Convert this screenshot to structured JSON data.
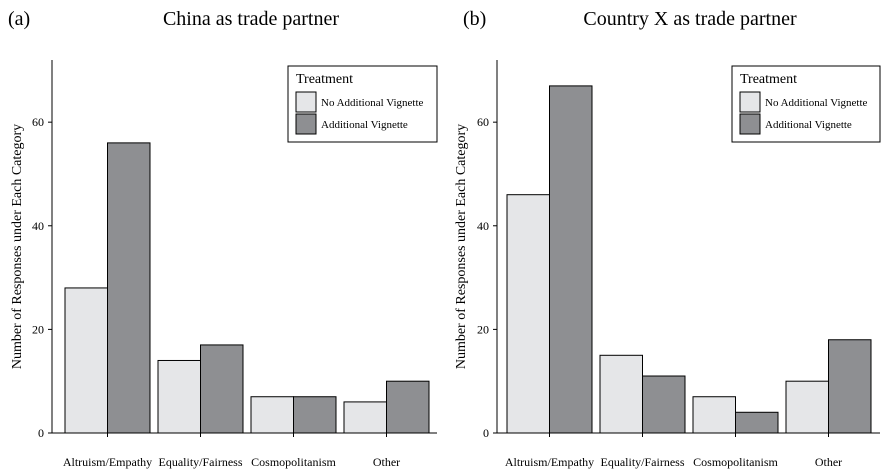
{
  "figure": {
    "colors": {
      "no_vignette": "#e5e6e8",
      "vignette": "#8e8f92",
      "stroke": "#000000"
    }
  },
  "chart_data": [
    {
      "type": "bar",
      "panel_label": "(a)",
      "title": "China as trade partner",
      "xlabel": "",
      "ylabel": "Number of Responses under Each Category",
      "categories": [
        "Altruism/Empathy",
        "Equality/Fairness",
        "Cosmopolitanism",
        "Other"
      ],
      "series": [
        {
          "name": "No Additional Vignette",
          "values": [
            28,
            14,
            7,
            6
          ]
        },
        {
          "name": "Additional Vignette",
          "values": [
            56,
            17,
            7,
            10
          ]
        }
      ],
      "ylim": [
        0,
        72
      ],
      "yticks": [
        0,
        20,
        40,
        60
      ],
      "grid": false,
      "legend": {
        "title": "Treatment",
        "position": "top-right"
      }
    },
    {
      "type": "bar",
      "panel_label": "(b)",
      "title": "Country X as trade partner",
      "xlabel": "",
      "ylabel": "Number of Responses under Each Category",
      "categories": [
        "Altruism/Empathy",
        "Equality/Fairness",
        "Cosmopolitanism",
        "Other"
      ],
      "series": [
        {
          "name": "No Additional Vignette",
          "values": [
            46,
            15,
            7,
            10
          ]
        },
        {
          "name": "Additional Vignette",
          "values": [
            67,
            11,
            4,
            18
          ]
        }
      ],
      "ylim": [
        0,
        72
      ],
      "yticks": [
        0,
        20,
        40,
        60
      ],
      "grid": false,
      "legend": {
        "title": "Treatment",
        "position": "top-right"
      }
    }
  ]
}
